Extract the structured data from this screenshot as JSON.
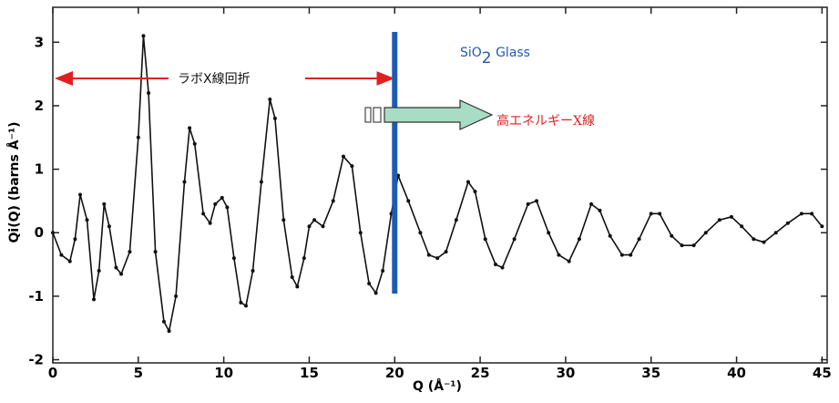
{
  "chart_data": {
    "type": "line",
    "x_label": "Q (Å⁻¹)",
    "y_label": "Qi(Q) (barns Å⁻¹)",
    "xlim": [
      0,
      45.3
    ],
    "ylim": [
      -2.05,
      3.55
    ],
    "xticks": [
      0,
      5,
      10,
      15,
      20,
      25,
      30,
      35,
      40,
      45
    ],
    "yticks": [
      -2,
      -1,
      0,
      1,
      2,
      3
    ],
    "series": [
      {
        "color": "#111111",
        "x": [
          0,
          0.5,
          1.0,
          1.3,
          1.6,
          2.0,
          2.4,
          2.7,
          3.0,
          3.3,
          3.7,
          4.0,
          4.5,
          5.0,
          5.3,
          5.6,
          6.0,
          6.5,
          6.8,
          7.2,
          7.7,
          8.0,
          8.3,
          8.8,
          9.2,
          9.5,
          9.9,
          10.2,
          10.6,
          11.0,
          11.3,
          11.7,
          12.2,
          12.7,
          13.0,
          13.5,
          14.0,
          14.3,
          14.7,
          15.0,
          15.3,
          15.8,
          16.4,
          17.0,
          17.5,
          18.0,
          18.5,
          18.9,
          19.3,
          19.8,
          20.2,
          20.8,
          21.5,
          22.0,
          22.5,
          23.0,
          23.6,
          24.3,
          24.7,
          25.3,
          25.9,
          26.3,
          27.0,
          27.8,
          28.3,
          29.0,
          29.6,
          30.2,
          30.8,
          31.5,
          32.0,
          32.6,
          33.3,
          33.8,
          34.3,
          35.0,
          35.5,
          36.2,
          36.8,
          37.5,
          38.2,
          39.0,
          39.7,
          40.3,
          41.0,
          41.6,
          42.3,
          43.0,
          43.8,
          44.4,
          45.0
        ],
        "values": [
          0.0,
          -0.35,
          -0.45,
          -0.1,
          0.6,
          0.2,
          -1.05,
          -0.6,
          0.45,
          0.1,
          -0.55,
          -0.65,
          -0.3,
          1.5,
          3.1,
          2.2,
          -0.3,
          -1.4,
          -1.55,
          -1.0,
          0.8,
          1.65,
          1.4,
          0.3,
          0.15,
          0.45,
          0.55,
          0.4,
          -0.4,
          -1.1,
          -1.15,
          -0.6,
          0.8,
          2.1,
          1.8,
          0.2,
          -0.7,
          -0.85,
          -0.4,
          0.1,
          0.2,
          0.1,
          0.5,
          1.2,
          1.05,
          0.0,
          -0.8,
          -0.95,
          -0.6,
          0.3,
          0.9,
          0.5,
          0.0,
          -0.35,
          -0.4,
          -0.3,
          0.2,
          0.8,
          0.65,
          -0.1,
          -0.5,
          -0.55,
          -0.1,
          0.45,
          0.5,
          0.0,
          -0.35,
          -0.45,
          -0.1,
          0.45,
          0.35,
          -0.05,
          -0.35,
          -0.35,
          -0.1,
          0.3,
          0.3,
          -0.05,
          -0.2,
          -0.2,
          0.0,
          0.2,
          0.25,
          0.1,
          -0.1,
          -0.15,
          0.0,
          0.15,
          0.3,
          0.3,
          0.1
        ]
      }
    ],
    "vline": {
      "x": 20,
      "color": "#1f5cb0"
    },
    "annotations": {
      "glass": {
        "text": "SiO",
        "sub": "2",
        "after": " Glass"
      },
      "lab": {
        "text": "ラボX線回折",
        "range": [
          0,
          20
        ]
      },
      "high": {
        "text": "高エネルギーX線"
      }
    }
  }
}
